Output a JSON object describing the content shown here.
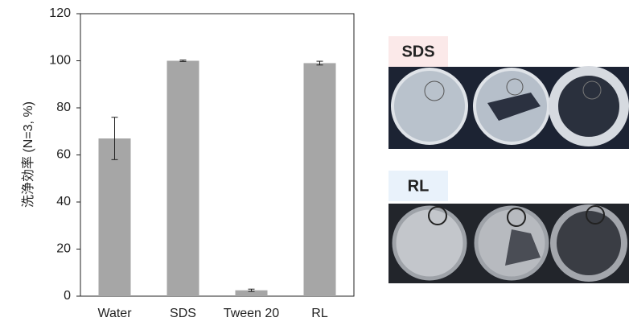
{
  "chart_data": {
    "type": "bar",
    "y_label": "洗浄効率 (N=3, %)",
    "categories": [
      "Water",
      "SDS",
      "Tween 20",
      "RL"
    ],
    "values": [
      67,
      100,
      2.5,
      99
    ],
    "errors": [
      9,
      0.3,
      0.5,
      0.8
    ],
    "color": "#a6a6a6",
    "ylim": [
      0,
      120
    ],
    "yticks": [
      0,
      20,
      40,
      60,
      80,
      100,
      120
    ]
  },
  "images": [
    {
      "label": "SDS",
      "label_color": "#e02020"
    },
    {
      "label": "RL",
      "label_color": "#1f6fb5"
    }
  ]
}
